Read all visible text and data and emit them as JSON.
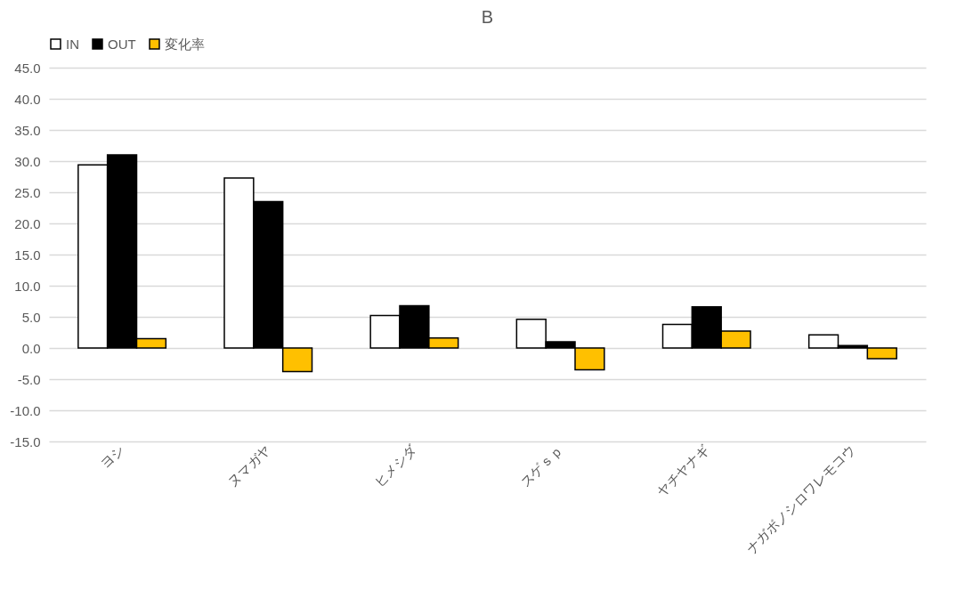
{
  "chart_data": {
    "type": "bar",
    "title": "B",
    "categories": [
      "ヨシ",
      "ヌマガヤ",
      "ヒメシダ",
      "スゲｓｐ",
      "ヤチヤナギ",
      "ナガボノシロワレモコウ"
    ],
    "series": [
      {
        "name": "IN",
        "color": "#ffffff",
        "values": [
          29.4,
          27.3,
          5.2,
          4.6,
          3.8,
          2.1
        ]
      },
      {
        "name": "OUT",
        "color": "#000000",
        "values": [
          31.0,
          23.5,
          6.8,
          1.0,
          6.6,
          0.4
        ]
      },
      {
        "name": "変化率",
        "color": "#ffc000",
        "values": [
          1.5,
          -3.8,
          1.6,
          -3.5,
          2.7,
          -1.7
        ]
      }
    ],
    "ylim": [
      -15,
      45
    ],
    "yticks": [
      {
        "value": -15,
        "label": "-15.0"
      },
      {
        "value": -10,
        "label": "-10.0"
      },
      {
        "value": -5,
        "label": "-5.0"
      },
      {
        "value": 0,
        "label": "0.0"
      },
      {
        "value": 5,
        "label": "5.0"
      },
      {
        "value": 10,
        "label": "10.0"
      },
      {
        "value": 15,
        "label": "15.0"
      },
      {
        "value": 20,
        "label": "20.0"
      },
      {
        "value": 25,
        "label": "25.0"
      },
      {
        "value": 30,
        "label": "30.0"
      },
      {
        "value": 35,
        "label": "35.0"
      },
      {
        "value": 40,
        "label": "40.0"
      },
      {
        "value": 45,
        "label": "45.0"
      }
    ],
    "grid": "y",
    "legend": "top"
  }
}
